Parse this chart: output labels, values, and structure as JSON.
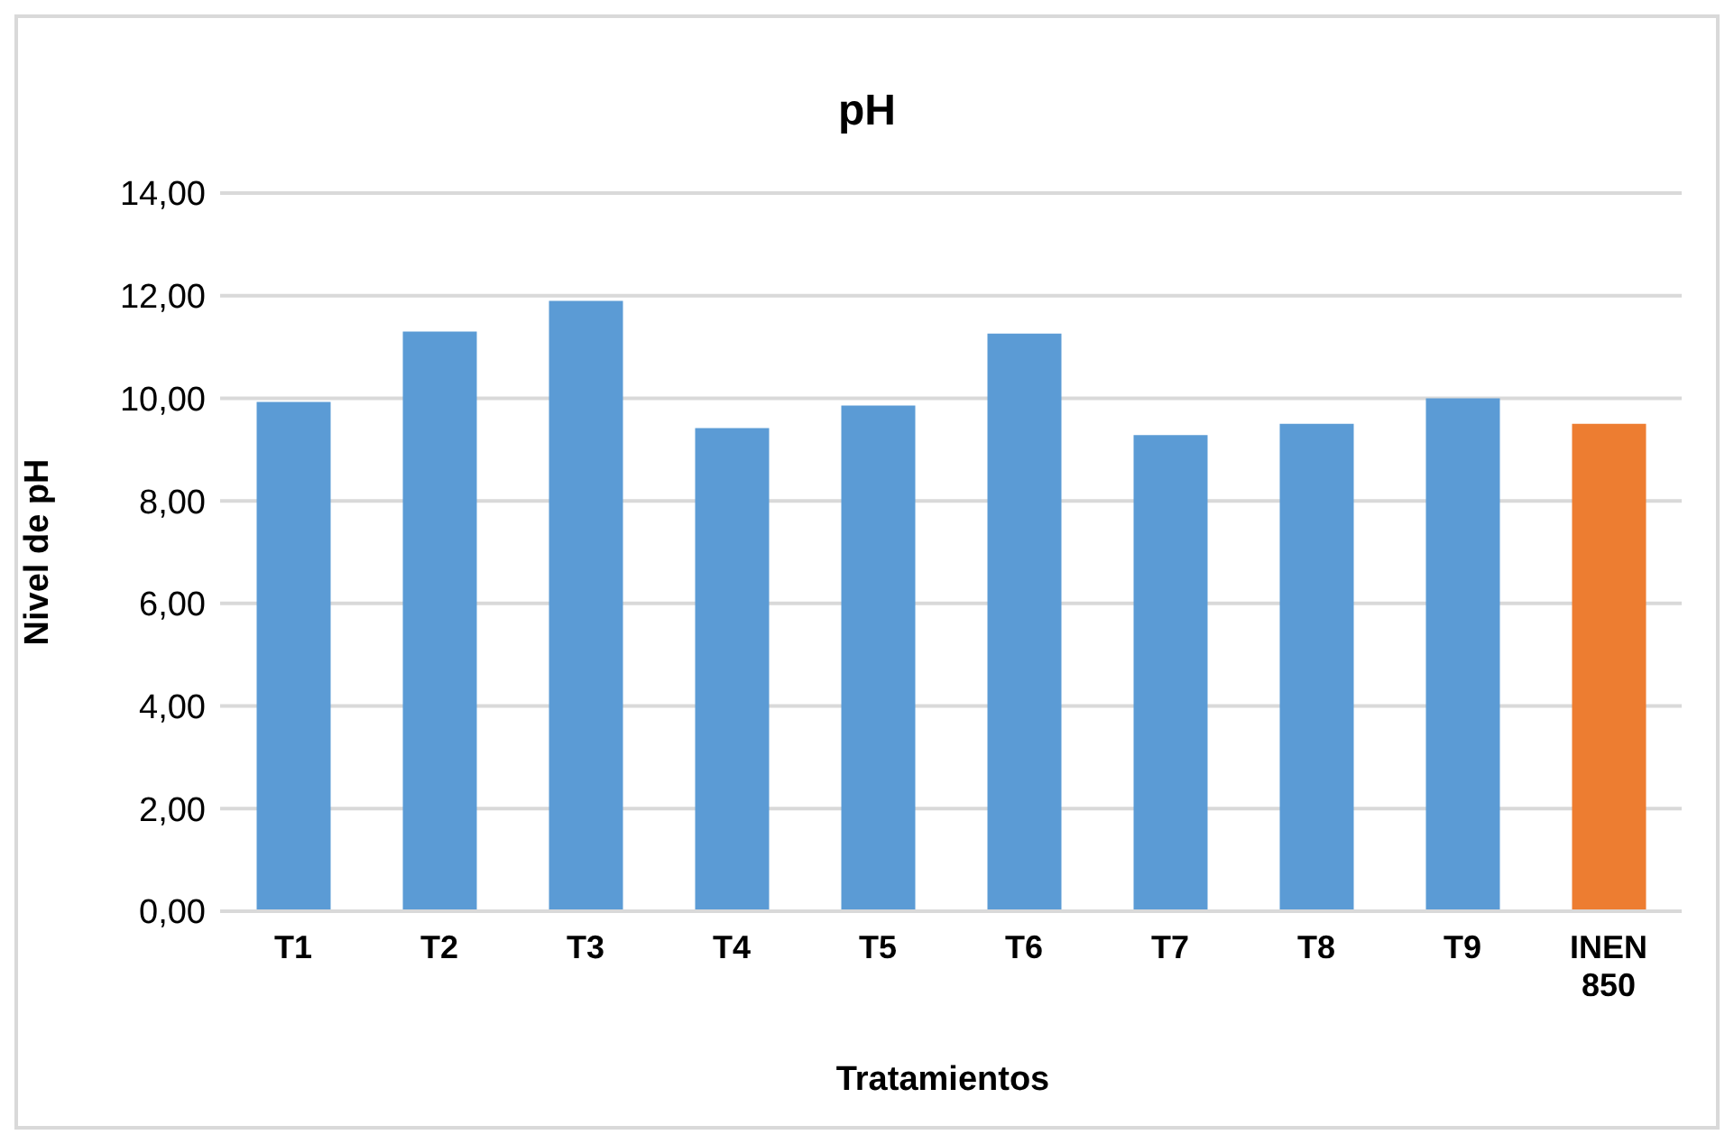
{
  "chart_data": {
    "type": "bar",
    "title": "pH",
    "xlabel": "Tratamientos",
    "ylabel": "Nivel de pH",
    "categories": [
      "T1",
      "T2",
      "T3",
      "T4",
      "T5",
      "T6",
      "T7",
      "T8",
      "T9",
      "INEN 850"
    ],
    "values": [
      9.93,
      11.3,
      11.9,
      9.42,
      9.86,
      11.26,
      9.28,
      9.5,
      10.0,
      9.5
    ],
    "colors": [
      "#5b9bd5",
      "#5b9bd5",
      "#5b9bd5",
      "#5b9bd5",
      "#5b9bd5",
      "#5b9bd5",
      "#5b9bd5",
      "#5b9bd5",
      "#5b9bd5",
      "#ed7d31"
    ],
    "ylim": [
      0,
      14
    ],
    "yticks": [
      {
        "value": 0,
        "label": "0,00"
      },
      {
        "value": 2,
        "label": "2,00"
      },
      {
        "value": 4,
        "label": "4,00"
      },
      {
        "value": 6,
        "label": "6,00"
      },
      {
        "value": 8,
        "label": "8,00"
      },
      {
        "value": 10,
        "label": "10,00"
      },
      {
        "value": 12,
        "label": "12,00"
      },
      {
        "value": 14,
        "label": "14,00"
      }
    ],
    "grid": "y",
    "legend": false
  }
}
